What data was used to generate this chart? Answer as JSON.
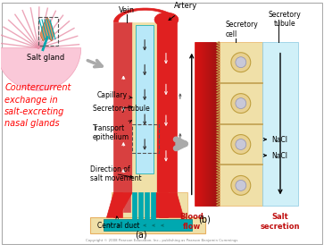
{
  "bg_color": "#ffffff",
  "copyright": "Copyright © 2008 Pearson Education, Inc., publishing as Pearson Benjamin Cummings",
  "labels": {
    "vein": "Vein",
    "artery": "Artery",
    "salt_gland": "Salt gland",
    "capillary": "Capillary",
    "secretory_tubule_a": "Secretory tubule",
    "transport_epithelium": "Transport\nepithelium",
    "direction_of_salt": "Direction of\nsalt movement",
    "central_duct": "Central duct",
    "secretory_cell": "Secretory\ncell",
    "secretory_tubule_b": "Secretory\ntubule",
    "nacl": "NaCl",
    "blood_flow": "Blood\nflow",
    "salt_secretion": "Salt\nsecretion",
    "panel_a": "(a)",
    "panel_b": "(b)",
    "title_line1": "Countercurrent",
    "title_line2": "exchange in",
    "title_line3": "salt-excreting",
    "title_line4": "nasal glands"
  },
  "colors": {
    "red": "#e02020",
    "red_dark": "#c01010",
    "red_medium": "#d83030",
    "tan": "#e8d090",
    "tan_light": "#f0e0a8",
    "cream": "#f5ead0",
    "teal": "#00a8b0",
    "teal_dark": "#007878",
    "blue_light": "#b8e8f8",
    "blue_pale": "#d0f0f8",
    "pink_pale": "#fac8d8",
    "pink": "#f0a0b8",
    "pink_stripe": "#e890a8",
    "gray_arrow": "#b0b0b0",
    "orange_tan": "#e8b060",
    "black": "#000000",
    "white": "#ffffff",
    "blood_red_dark": "#cc0000",
    "blood_red_light": "#ff4444"
  }
}
